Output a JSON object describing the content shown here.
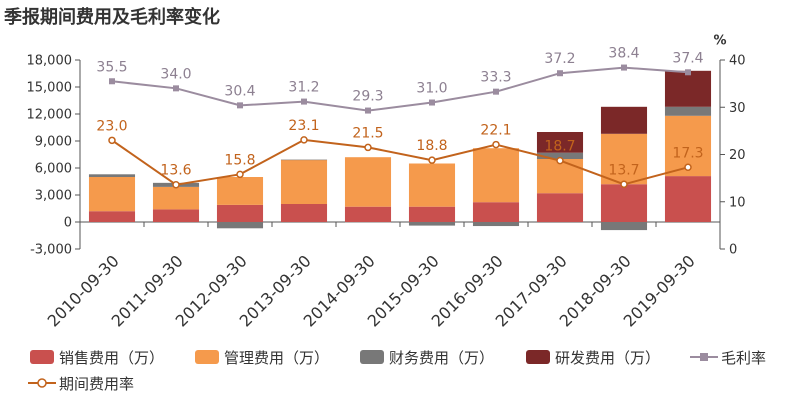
{
  "title": "季报期间费用及毛利率变化",
  "chart_data": {
    "type": "bar",
    "stacked": true,
    "categories": [
      "2010-09-30",
      "2011-09-30",
      "2012-09-30",
      "2013-09-30",
      "2014-09-30",
      "2015-09-30",
      "2016-09-30",
      "2017-09-30",
      "2018-09-30",
      "2019-09-30"
    ],
    "series": [
      {
        "name": "销售费用（万）",
        "type": "bar",
        "y_axis": "left",
        "color": "#c9504e",
        "values": [
          1200,
          1400,
          1900,
          2000,
          1700,
          1700,
          2200,
          3200,
          4200,
          5100
        ]
      },
      {
        "name": "管理费用（万）",
        "type": "bar",
        "y_axis": "left",
        "color": "#f59a4c",
        "values": [
          3800,
          2500,
          3100,
          4900,
          5500,
          4800,
          6000,
          3800,
          5600,
          6700
        ]
      },
      {
        "name": "财务费用（万）",
        "type": "bar",
        "y_axis": "left",
        "color": "#787878",
        "values": [
          300,
          450,
          -700,
          30,
          -40,
          -400,
          -450,
          700,
          -900,
          1000
        ]
      },
      {
        "name": "研发费用（万）",
        "type": "bar",
        "y_axis": "left",
        "color": "#7b2828",
        "values": [
          null,
          null,
          null,
          null,
          null,
          null,
          null,
          2300,
          3000,
          4000
        ]
      },
      {
        "name": "毛利率",
        "type": "line",
        "y_axis": "right",
        "color": "#9b8c9f",
        "label_color": "#8d8091",
        "marker": "square",
        "show_labels": true,
        "values": [
          35.5,
          34.0,
          30.4,
          31.2,
          29.3,
          31.0,
          33.3,
          37.2,
          38.4,
          37.4
        ]
      },
      {
        "name": "期间费用率",
        "type": "line",
        "y_axis": "right",
        "color": "#c2631c",
        "label_color": "#c2631c",
        "marker": "circle",
        "show_labels": true,
        "values": [
          23.0,
          13.6,
          15.8,
          23.1,
          21.5,
          18.8,
          22.1,
          18.7,
          13.7,
          17.3
        ]
      }
    ],
    "y_left": {
      "min": -3000,
      "max": 18000,
      "step": 3000,
      "tick_labels": [
        "-3,000",
        "0",
        "3,000",
        "6,000",
        "9,000",
        "12,000",
        "15,000",
        "18,000"
      ]
    },
    "y_right": {
      "min": 0,
      "max": 40,
      "step": 10,
      "unit": "%",
      "tick_labels": [
        "0",
        "10",
        "20",
        "30",
        "40"
      ]
    },
    "grid": false,
    "legend_position": "bottom"
  }
}
